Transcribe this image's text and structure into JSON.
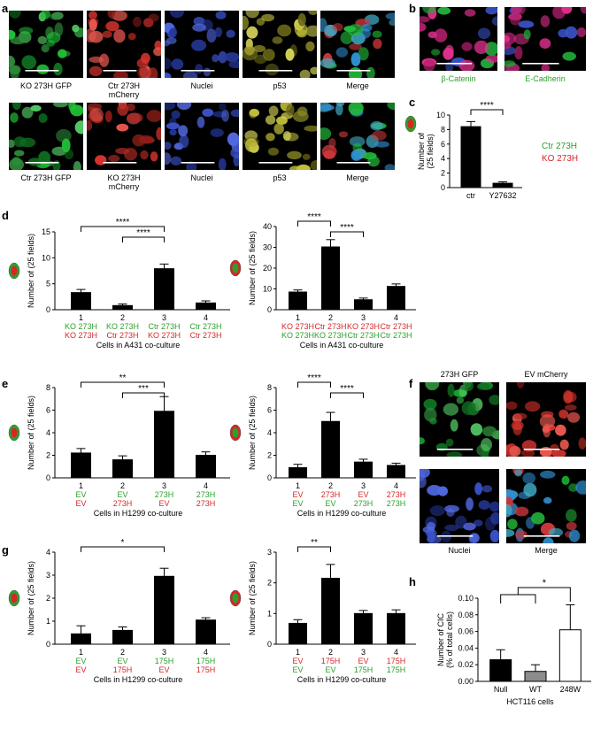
{
  "panel_labels": {
    "a": "a",
    "b": "b",
    "c": "c",
    "d": "d",
    "e": "e",
    "f": "f",
    "g": "g",
    "h": "h"
  },
  "colors": {
    "green": "#2ca02c",
    "red": "#d62728",
    "black": "#000000",
    "gray": "#8c8c8c",
    "white": "#ffffff"
  },
  "micro_a": {
    "row1": [
      "KO 273H GFP",
      "Ctr 273H\nmCherry",
      "Nuclei",
      "p53",
      "Merge"
    ],
    "row2": [
      "Ctr 273H GFP",
      "KO 273H\nmCherry",
      "Nuclei",
      "p53",
      "Merge"
    ]
  },
  "micro_b": {
    "labels": [
      "β-Catenin",
      "E-Cadherin"
    ]
  },
  "micro_f": {
    "labels": [
      "273H GFP",
      "EV mCherry",
      "Nuclei",
      "Merge"
    ]
  },
  "chart_data": [
    {
      "panel": "c",
      "type": "bar",
      "ylabel": "Number of\n(25 fields)",
      "ylim": [
        0,
        10
      ],
      "yticks": [
        0,
        2,
        4,
        6,
        8,
        10
      ],
      "categories": [
        "ctr",
        "Y27632"
      ],
      "values": [
        8.4,
        0.6
      ],
      "errors": [
        0.7,
        0.2
      ],
      "fills": [
        "#000000",
        "#000000"
      ],
      "sig": [
        {
          "from": 0,
          "to": 1,
          "label": "****"
        }
      ],
      "legend": [
        {
          "text": "Ctr 273H",
          "color": "#2ca02c"
        },
        {
          "text": "KO 273H",
          "color": "#d62728"
        }
      ]
    },
    {
      "panel": "d-left",
      "type": "bar",
      "ylabel": "Number of (25 fields)",
      "ylim": [
        0,
        15
      ],
      "yticks": [
        0,
        5,
        10,
        15
      ],
      "categories": [
        "1",
        "2",
        "3",
        "4"
      ],
      "values": [
        3.3,
        0.8,
        7.9,
        1.3
      ],
      "errors": [
        0.6,
        0.3,
        0.9,
        0.4
      ],
      "sub1": [
        {
          "text": "KO 273H",
          "color": "#2ca02c"
        },
        {
          "text": "KO 273H",
          "color": "#2ca02c"
        },
        {
          "text": "Ctr 273H",
          "color": "#2ca02c"
        },
        {
          "text": "Ctr 273H",
          "color": "#2ca02c"
        }
      ],
      "sub2": [
        {
          "text": "KO 273H",
          "color": "#d62728"
        },
        {
          "text": "Ctr 273H",
          "color": "#d62728"
        },
        {
          "text": "KO 273H",
          "color": "#d62728"
        },
        {
          "text": "Ctr 273H",
          "color": "#d62728"
        }
      ],
      "xlabel": "Cells in A431 co-culture",
      "sig": [
        {
          "from": 0,
          "to": 2,
          "label": "****"
        },
        {
          "from": 1,
          "to": 2,
          "label": "****"
        }
      ]
    },
    {
      "panel": "d-right",
      "type": "bar",
      "ylabel": "Number of (25 fields)",
      "ylim": [
        0,
        40
      ],
      "yticks": [
        0,
        10,
        20,
        30,
        40
      ],
      "categories": [
        "1",
        "2",
        "3",
        "4"
      ],
      "values": [
        8.5,
        30.2,
        4.8,
        11.2
      ],
      "errors": [
        1.0,
        3.5,
        0.8,
        1.2
      ],
      "sub1": [
        {
          "text": "KO 273H",
          "color": "#d62728"
        },
        {
          "text": "Ctr 273H",
          "color": "#d62728"
        },
        {
          "text": "KO 273H",
          "color": "#d62728"
        },
        {
          "text": "Ctr 273H",
          "color": "#d62728"
        }
      ],
      "sub2": [
        {
          "text": "KO 273H",
          "color": "#2ca02c"
        },
        {
          "text": "KO 273H",
          "color": "#2ca02c"
        },
        {
          "text": "Ctr 273H",
          "color": "#2ca02c"
        },
        {
          "text": "Ctr 273H",
          "color": "#2ca02c"
        }
      ],
      "xlabel": "Cells in A431 co-culture",
      "sig": [
        {
          "from": 0,
          "to": 1,
          "label": "****"
        },
        {
          "from": 1,
          "to": 2,
          "label": "****"
        }
      ]
    },
    {
      "panel": "e-left",
      "type": "bar",
      "ylabel": "Number of (25 fields)",
      "ylim": [
        0,
        8
      ],
      "yticks": [
        0,
        2,
        4,
        6,
        8
      ],
      "categories": [
        "1",
        "2",
        "3",
        "4"
      ],
      "values": [
        2.2,
        1.6,
        5.9,
        2.0
      ],
      "errors": [
        0.4,
        0.35,
        1.3,
        0.3
      ],
      "sub1": [
        {
          "text": "EV",
          "color": "#2ca02c"
        },
        {
          "text": "EV",
          "color": "#2ca02c"
        },
        {
          "text": "273H",
          "color": "#2ca02c"
        },
        {
          "text": "273H",
          "color": "#2ca02c"
        }
      ],
      "sub2": [
        {
          "text": "EV",
          "color": "#d62728"
        },
        {
          "text": "273H",
          "color": "#d62728"
        },
        {
          "text": "EV",
          "color": "#d62728"
        },
        {
          "text": "273H",
          "color": "#d62728"
        }
      ],
      "xlabel": "Cells in H1299 co-culture",
      "sig": [
        {
          "from": 0,
          "to": 2,
          "label": "**"
        },
        {
          "from": 1,
          "to": 2,
          "label": "***"
        }
      ]
    },
    {
      "panel": "e-right",
      "type": "bar",
      "ylabel": "Number of (25 fields)",
      "ylim": [
        0,
        8
      ],
      "yticks": [
        0,
        2,
        4,
        6,
        8
      ],
      "categories": [
        "1",
        "2",
        "3",
        "4"
      ],
      "values": [
        0.9,
        5.0,
        1.4,
        1.1
      ],
      "errors": [
        0.3,
        0.8,
        0.25,
        0.2
      ],
      "sub1": [
        {
          "text": "EV",
          "color": "#d62728"
        },
        {
          "text": "273H",
          "color": "#d62728"
        },
        {
          "text": "EV",
          "color": "#d62728"
        },
        {
          "text": "273H",
          "color": "#d62728"
        }
      ],
      "sub2": [
        {
          "text": "EV",
          "color": "#2ca02c"
        },
        {
          "text": "EV",
          "color": "#2ca02c"
        },
        {
          "text": "273H",
          "color": "#2ca02c"
        },
        {
          "text": "273H",
          "color": "#2ca02c"
        }
      ],
      "xlabel": "Cells in H1299 co-culture",
      "sig": [
        {
          "from": 0,
          "to": 1,
          "label": "****"
        },
        {
          "from": 1,
          "to": 2,
          "label": "****"
        }
      ]
    },
    {
      "panel": "g-left",
      "type": "bar",
      "ylabel": "Number of (25 fields)",
      "ylim": [
        0,
        4
      ],
      "yticks": [
        0,
        1,
        2,
        3,
        4
      ],
      "categories": [
        "1",
        "2",
        "3",
        "4"
      ],
      "values": [
        0.45,
        0.6,
        2.95,
        1.05
      ],
      "errors": [
        0.35,
        0.15,
        0.35,
        0.1
      ],
      "sub1": [
        {
          "text": "EV",
          "color": "#2ca02c"
        },
        {
          "text": "EV",
          "color": "#2ca02c"
        },
        {
          "text": "175H",
          "color": "#2ca02c"
        },
        {
          "text": "175H",
          "color": "#2ca02c"
        }
      ],
      "sub2": [
        {
          "text": "EV",
          "color": "#d62728"
        },
        {
          "text": "175H",
          "color": "#d62728"
        },
        {
          "text": "EV",
          "color": "#d62728"
        },
        {
          "text": "175H",
          "color": "#d62728"
        }
      ],
      "xlabel": "Cells in H1299 co-culture",
      "sig": [
        {
          "from": 0,
          "to": 2,
          "label": "*"
        }
      ]
    },
    {
      "panel": "g-right",
      "type": "bar",
      "ylabel": "Number of (25 fields)",
      "ylim": [
        0,
        3
      ],
      "yticks": [
        0,
        1,
        2,
        3
      ],
      "categories": [
        "1",
        "2",
        "3",
        "4"
      ],
      "values": [
        0.68,
        2.15,
        1.0,
        1.0
      ],
      "errors": [
        0.12,
        0.45,
        0.1,
        0.12
      ],
      "sub1": [
        {
          "text": "EV",
          "color": "#d62728"
        },
        {
          "text": "175H",
          "color": "#d62728"
        },
        {
          "text": "EV",
          "color": "#d62728"
        },
        {
          "text": "175H",
          "color": "#d62728"
        }
      ],
      "sub2": [
        {
          "text": "EV",
          "color": "#2ca02c"
        },
        {
          "text": "EV",
          "color": "#2ca02c"
        },
        {
          "text": "175H",
          "color": "#2ca02c"
        },
        {
          "text": "175H",
          "color": "#2ca02c"
        }
      ],
      "xlabel": "Cells in H1299 co-culture",
      "sig": [
        {
          "from": 0,
          "to": 1,
          "label": "**"
        }
      ]
    },
    {
      "panel": "h",
      "type": "bar",
      "ylabel": "Number of CIC\n(% of total cells)",
      "ylim": [
        0,
        0.1
      ],
      "yticks": [
        0,
        0.02,
        0.04,
        0.06,
        0.08,
        0.1
      ],
      "ytick_labels": [
        "0.00",
        "0.02",
        "0.04",
        "0.06",
        "0.08",
        "0.10"
      ],
      "categories": [
        "Null",
        "WT",
        "248W"
      ],
      "values": [
        0.026,
        0.012,
        0.062
      ],
      "errors": [
        0.012,
        0.008,
        0.03
      ],
      "fills": [
        "#000000",
        "#8c8c8c",
        "#ffffff"
      ],
      "xlabel": "HCT116 cells",
      "sig": [
        {
          "label": "*"
        }
      ]
    }
  ]
}
